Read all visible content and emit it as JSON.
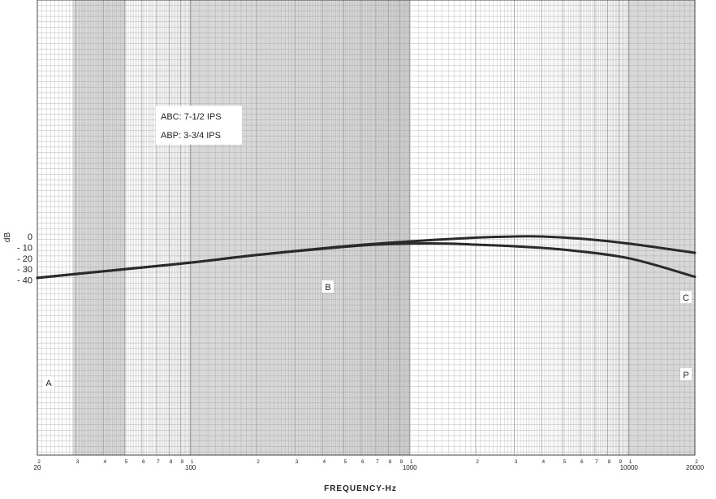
{
  "chart_data": {
    "type": "line",
    "title": "",
    "xlabel": "FREQUENCY-Hz",
    "ylabel": "dB",
    "xscale": "log",
    "xlim": [
      20,
      20000
    ],
    "ylim": [
      -40,
      0
    ],
    "grid": true,
    "x_tick_labels": [
      "20",
      "100",
      "1000",
      "10000",
      "20000"
    ],
    "x_minor_tick_labels": [
      "2",
      "3",
      "4",
      "5",
      "6",
      "7",
      "8",
      "9",
      "1",
      "2",
      "3",
      "4",
      "5",
      "6",
      "7",
      "8",
      "9",
      "1",
      "2",
      "3",
      "4",
      "5",
      "6",
      "7",
      "8",
      "9",
      "1",
      "2"
    ],
    "y_tick_labels": [
      "0",
      "- 10",
      "- 20",
      "- 30",
      "- 40"
    ],
    "legend": [
      "ABC: 7-1/2 IPS",
      "ABP: 3-3/4 IPS"
    ],
    "legend_position": "upper-left",
    "series": [
      {
        "name": "ABC: 7-1/2 IPS",
        "x": [
          20,
          50,
          100,
          200,
          500,
          1000,
          2000,
          3000,
          4000,
          6000,
          10000,
          20000
        ],
        "y": [
          -38,
          -30,
          -24,
          -17,
          -9,
          -4.5,
          -1,
          0,
          0,
          -2,
          -6.5,
          -15
        ]
      },
      {
        "name": "ABP: 3-3/4 IPS",
        "x": [
          20,
          50,
          100,
          200,
          500,
          700,
          1000,
          1500,
          2000,
          3000,
          5000,
          10000,
          20000
        ],
        "y": [
          -38,
          -30,
          -24,
          -17,
          -9.5,
          -7.5,
          -6.5,
          -6.5,
          -7.5,
          -9,
          -12,
          -20,
          -37
        ]
      }
    ],
    "point_labels": [
      "A",
      "B",
      "C",
      "P"
    ],
    "colors": {
      "curve": "#2a2a2a",
      "grid": "#9a9a9a",
      "shade": "#d8d8d8"
    }
  }
}
